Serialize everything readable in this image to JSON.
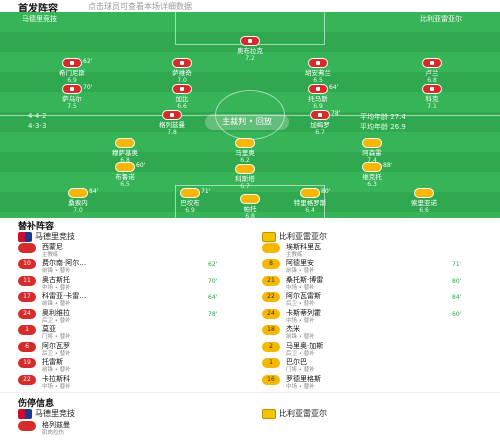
{
  "header": {
    "title": "首发阵容",
    "subtitle": "点击球员可查看本场详细数据"
  },
  "pitch": {
    "home_tag": "马德里竞技",
    "away_tag": "比利亚雷亚尔",
    "home_formation": "4-4-2",
    "away_formation": "4-3-3",
    "center_label": "主裁判 • 回放",
    "home_note": "平均年龄 27.4",
    "away_note": "平均年龄 26.9",
    "home_players": [
      {
        "num": "13",
        "name": "奥布拉克",
        "rating": "7.2",
        "min": ""
      },
      {
        "num": "2",
        "name": "希门尼斯",
        "rating": "6.9",
        "min": "62'"
      },
      {
        "num": "15",
        "name": "萨维奇",
        "rating": "7.0",
        "min": ""
      },
      {
        "num": "20",
        "name": "胡安弗兰",
        "rating": "6.5",
        "min": ""
      },
      {
        "num": "3",
        "name": "卢兰",
        "rating": "6.8",
        "min": ""
      },
      {
        "num": "8",
        "name": "萨乌尔",
        "rating": "7.5",
        "min": "70'"
      },
      {
        "num": "14",
        "name": "加比",
        "rating": "6.6",
        "min": ""
      },
      {
        "num": "5",
        "name": "托马斯",
        "rating": "6.9",
        "min": "64'"
      },
      {
        "num": "23",
        "name": "科克",
        "rating": "7.1",
        "min": ""
      },
      {
        "num": "9",
        "name": "格列兹曼",
        "rating": "7.8",
        "min": ""
      },
      {
        "num": "21",
        "name": "加梅罗",
        "rating": "6.7",
        "min": "78'"
      }
    ],
    "away_players": [
      {
        "num": "10",
        "name": "帕托",
        "rating": "6.8",
        "min": ""
      },
      {
        "num": "5",
        "name": "桑索内",
        "rating": "7.0",
        "min": "84'"
      },
      {
        "num": "11",
        "name": "巴坎布",
        "rating": "6.9",
        "min": "71'"
      },
      {
        "num": "19",
        "name": "特里格罗斯",
        "rating": "6.4",
        "min": "80'"
      },
      {
        "num": "7",
        "name": "索里亚诺",
        "rating": "6.6",
        "min": ""
      },
      {
        "num": "20",
        "name": "布鲁诺",
        "rating": "6.5",
        "min": "60'"
      },
      {
        "num": "15",
        "name": "科斯塔",
        "rating": "6.7",
        "min": ""
      },
      {
        "num": "6",
        "name": "维克托",
        "rating": "6.3",
        "min": "88'"
      },
      {
        "num": "4",
        "name": "穆萨基奥",
        "rating": "6.8",
        "min": ""
      },
      {
        "num": "25",
        "name": "马里奥",
        "rating": "6.2",
        "min": ""
      },
      {
        "num": "13",
        "name": "阿森霍",
        "rating": "7.4",
        "min": ""
      }
    ]
  },
  "subs": {
    "title": "替补阵容",
    "home_team": "马德里竞技",
    "away_team": "比利亚雷亚尔",
    "home_coach": "西蒙尼",
    "home_coach_role": "主教练",
    "away_coach": "埃斯科里瓦",
    "away_coach_role": "主教练",
    "home": [
      {
        "num": "10",
        "name": "费尔南·阿尔…",
        "info": "前锋 • 替补",
        "min": "62'"
      },
      {
        "num": "11",
        "name": "奥古斯托",
        "info": "中场 • 替补",
        "min": "70'"
      },
      {
        "num": "17",
        "name": "科雷亚·卡雷…",
        "info": "前锋 • 替补",
        "min": "64'"
      },
      {
        "num": "24",
        "name": "奥利维拉",
        "info": "后卫 • 替补",
        "min": "78'"
      },
      {
        "num": "1",
        "name": "莫亚",
        "info": "门将 • 替补",
        "min": ""
      },
      {
        "num": "6",
        "name": "阿尔瓦罗",
        "info": "后卫 • 替补",
        "min": ""
      },
      {
        "num": "19",
        "name": "托雷斯",
        "info": "前锋 • 替补",
        "min": ""
      },
      {
        "num": "22",
        "name": "卡拉斯科",
        "info": "中场 • 替补",
        "min": ""
      }
    ],
    "away": [
      {
        "num": "8",
        "name": "阿德里安",
        "info": "前锋 • 替补",
        "min": "71'"
      },
      {
        "num": "21",
        "name": "桑托斯·博雷",
        "info": "中场 • 替补",
        "min": "80'"
      },
      {
        "num": "22",
        "name": "阿尔瓦雷斯",
        "info": "后卫 • 替补",
        "min": "84'"
      },
      {
        "num": "24",
        "name": "卡斯蒂列霍",
        "info": "中场 • 替补",
        "min": "60'"
      },
      {
        "num": "18",
        "name": "杰米",
        "info": "前锋 • 替补",
        "min": ""
      },
      {
        "num": "2",
        "name": "马里奥·加斯",
        "info": "后卫 • 替补",
        "min": ""
      },
      {
        "num": "1",
        "name": "巴尔巴",
        "info": "门将 • 替补",
        "min": ""
      },
      {
        "num": "16",
        "name": "罗德里格斯",
        "info": "中场 • 替补",
        "min": ""
      }
    ]
  },
  "injuries": {
    "title": "伤停信息",
    "home_team": "马德里竞技",
    "away_team": "比利亚雷亚尔",
    "home_player": "格列兹曼",
    "home_info": "肌肉拉伤"
  },
  "colors": {
    "pitch": "#2fa84f",
    "home": "#d62b2b",
    "away": "#f5b700",
    "minute": "#2aa54b"
  }
}
